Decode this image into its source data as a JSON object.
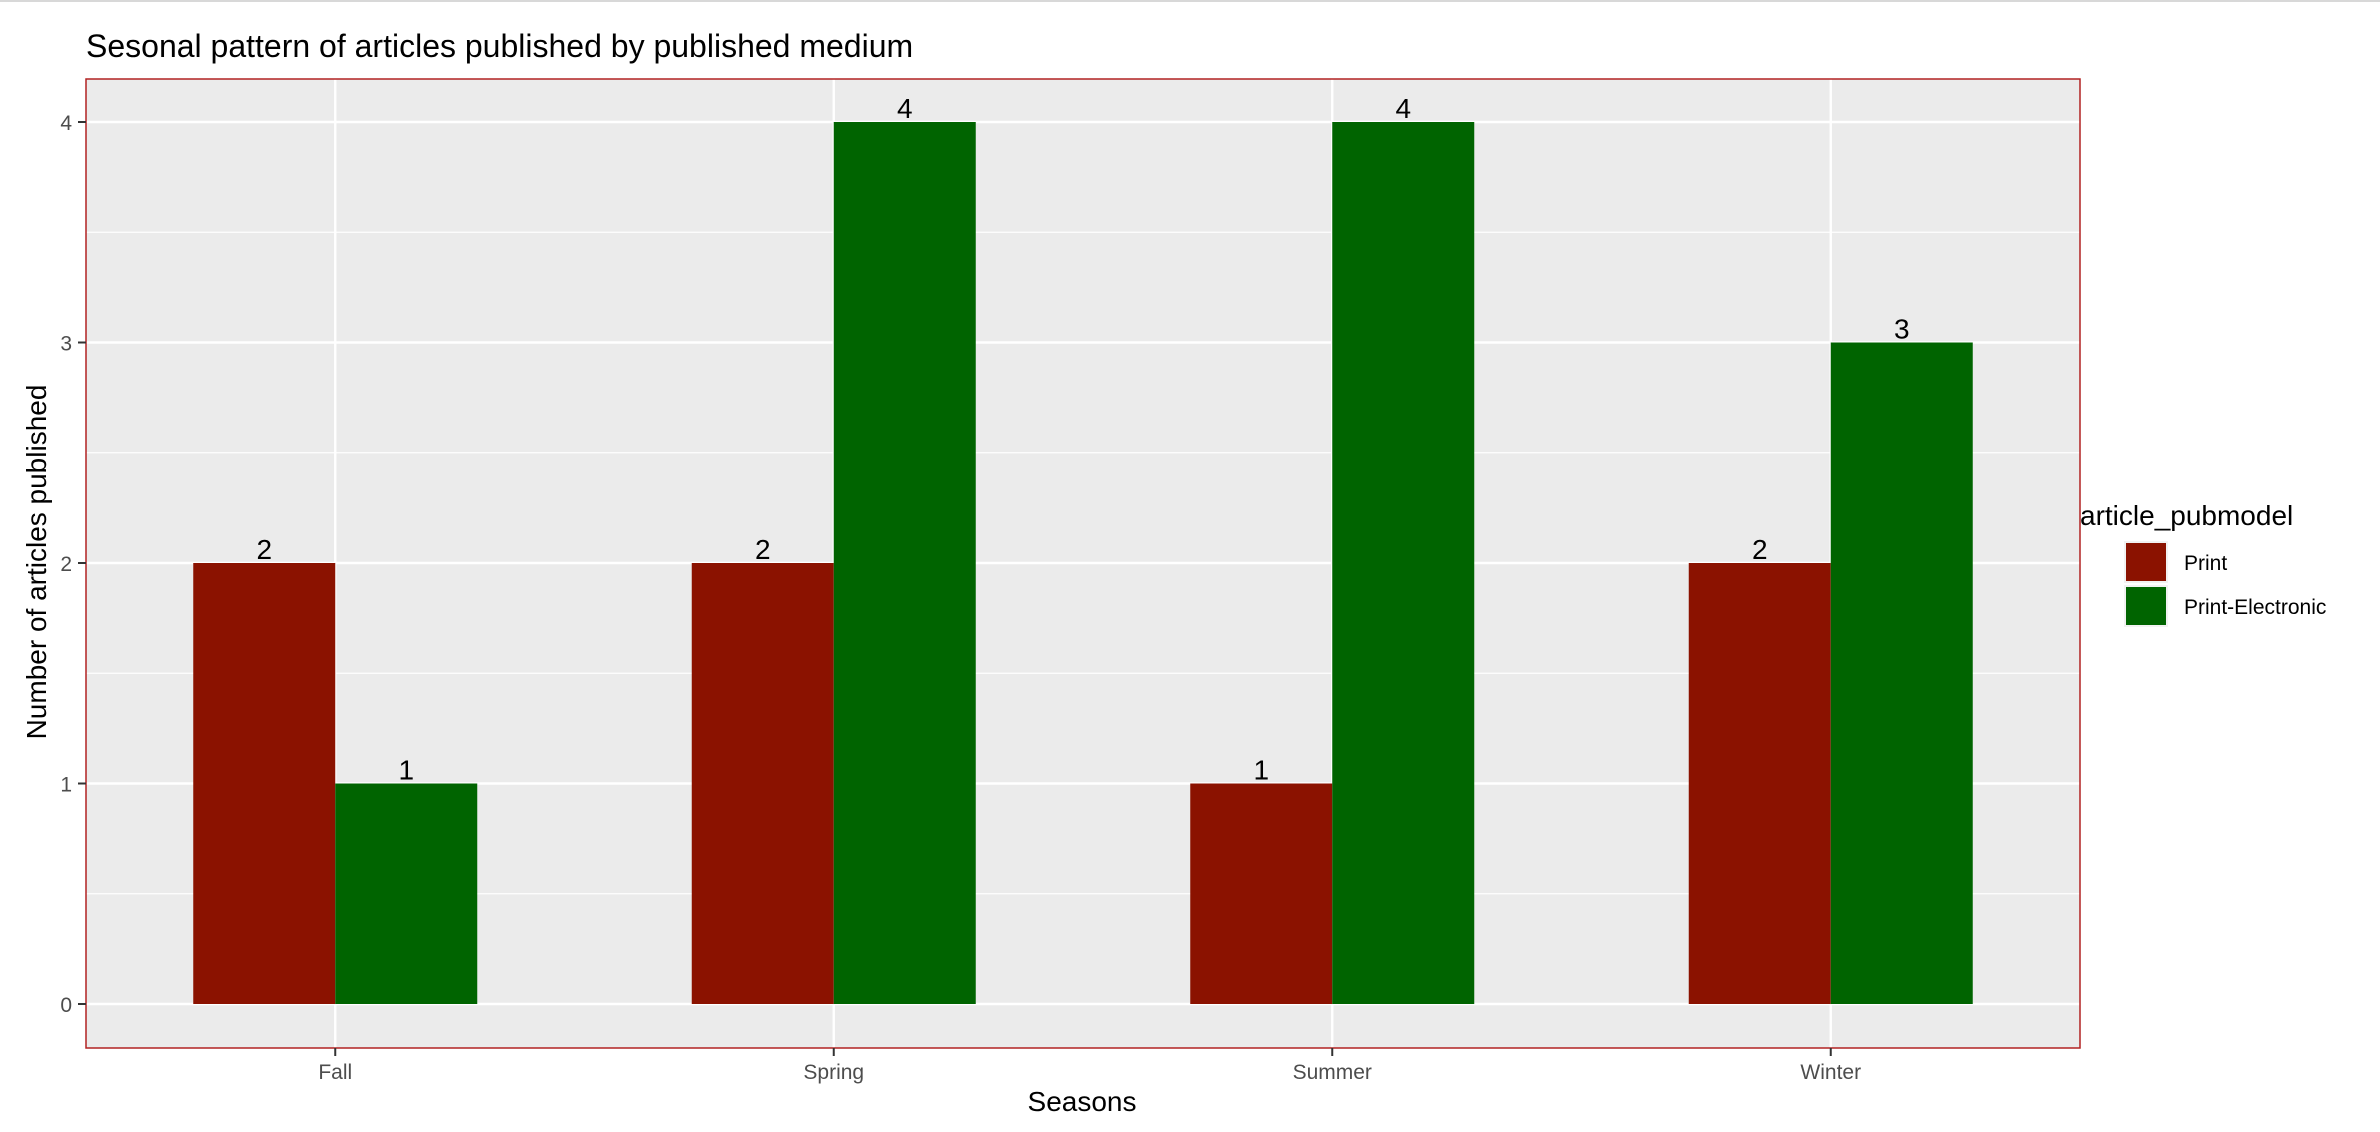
{
  "chart_data": {
    "type": "bar",
    "title": "Sesonal pattern of articles published by published medium",
    "xlabel": "Seasons",
    "ylabel": "Number of articles published",
    "categories": [
      "Fall",
      "Spring",
      "Summer",
      "Winter"
    ],
    "series": [
      {
        "name": "Print",
        "color": "#8B1200",
        "values": [
          2,
          2,
          1,
          2
        ]
      },
      {
        "name": "Print-Electronic",
        "color": "#006400",
        "values": [
          1,
          4,
          4,
          3
        ]
      }
    ],
    "ylim": [
      0,
      4
    ],
    "yticks": [
      0,
      1,
      2,
      3,
      4
    ],
    "grid": true,
    "legend": {
      "title": "article_pubmodel",
      "placement": "right"
    },
    "colors": {
      "panel_background": "#EBEBEB",
      "panel_border": "#B22222",
      "gridline": "#FFFFFF"
    }
  }
}
